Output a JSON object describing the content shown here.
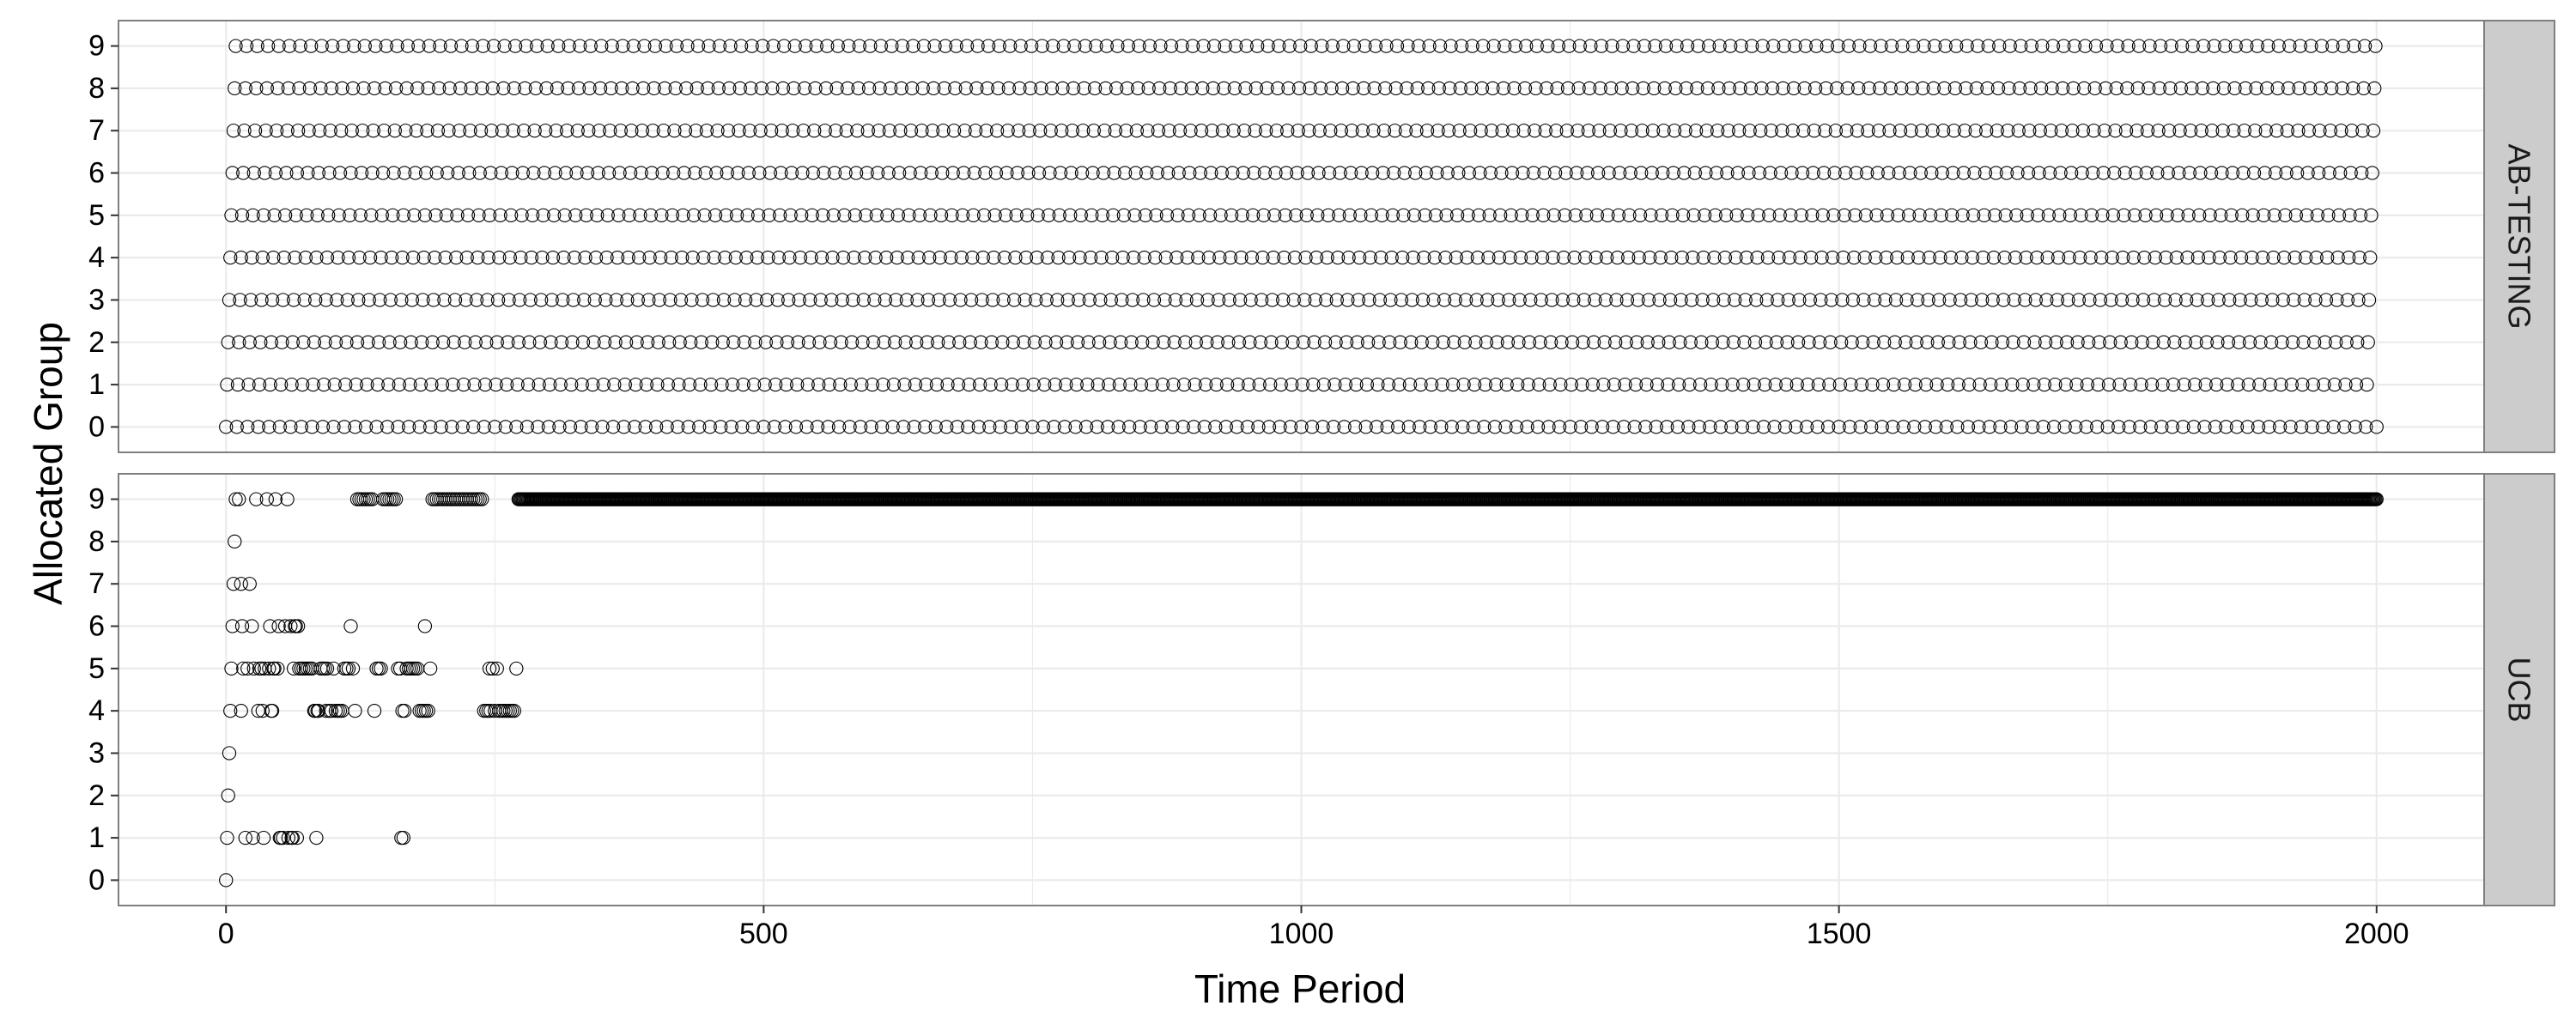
{
  "chart_data": {
    "type": "scatter",
    "xlabel": "Time Period",
    "ylabel": "Allocated Group",
    "xlim": [
      -100,
      2100
    ],
    "ylim": [
      -0.6,
      9.6
    ],
    "x_ticks": [
      0,
      500,
      1000,
      1500,
      2000
    ],
    "y_ticks": [
      0,
      1,
      2,
      3,
      4,
      5,
      6,
      7,
      8,
      9
    ],
    "grid": true,
    "legend": "none",
    "marker": "open-circle",
    "colors": {
      "panel_bg": "#ffffff",
      "grid": "#ebebeb",
      "strip_bg": "#cccccc",
      "marker_stroke": "#000000"
    },
    "facets": [
      {
        "label": "AB-TESTING",
        "description_of_points": "strict rotation: time period t allocated to group t mod 10, t from 0 to 2000",
        "rule": {
          "kind": "round_robin",
          "t_start": 0,
          "t_end": 2000,
          "groups": 10
        }
      },
      {
        "label": "UCB",
        "points": [
          [
            0,
            0
          ],
          [
            1,
            1
          ],
          [
            2,
            2
          ],
          [
            3,
            3
          ],
          [
            4,
            4
          ],
          [
            5,
            5
          ],
          [
            6,
            6
          ],
          [
            7,
            7
          ],
          [
            8,
            8
          ],
          [
            9,
            9
          ],
          [
            12,
            9
          ],
          [
            14,
            7
          ],
          [
            14,
            4
          ],
          [
            15,
            6
          ],
          [
            16,
            5
          ],
          [
            18,
            1
          ],
          [
            20,
            5
          ],
          [
            22,
            7
          ],
          [
            24,
            6
          ],
          [
            25,
            1
          ],
          [
            26,
            5
          ],
          [
            28,
            9
          ],
          [
            30,
            4
          ],
          [
            31,
            5
          ],
          [
            33,
            5
          ],
          [
            34,
            4
          ],
          [
            35,
            1
          ],
          [
            36,
            5
          ],
          [
            38,
            9
          ],
          [
            40,
            5
          ],
          [
            41,
            6
          ],
          [
            42,
            4
          ],
          [
            43,
            4
          ],
          [
            44,
            5
          ],
          [
            45,
            5
          ],
          [
            46,
            9
          ],
          [
            48,
            5
          ],
          [
            49,
            6
          ],
          [
            50,
            1
          ],
          [
            51,
            1
          ],
          [
            53,
            1
          ],
          [
            55,
            6
          ],
          [
            57,
            9
          ],
          [
            58,
            1
          ],
          [
            60,
            6
          ],
          [
            61,
            1
          ],
          [
            62,
            1
          ],
          [
            63,
            5
          ],
          [
            64,
            6
          ],
          [
            65,
            6
          ],
          [
            66,
            1
          ],
          [
            67,
            6
          ],
          [
            68,
            5
          ],
          [
            70,
            5
          ],
          [
            72,
            5
          ],
          [
            74,
            5
          ],
          [
            76,
            5
          ],
          [
            78,
            5
          ],
          [
            80,
            5
          ],
          [
            82,
            4
          ],
          [
            83,
            4
          ],
          [
            84,
            1
          ],
          [
            85,
            4
          ],
          [
            86,
            4
          ],
          [
            88,
            5
          ],
          [
            90,
            5
          ],
          [
            92,
            5
          ],
          [
            93,
            4
          ],
          [
            94,
            5
          ],
          [
            96,
            4
          ],
          [
            98,
            4
          ],
          [
            100,
            5
          ],
          [
            102,
            4
          ],
          [
            104,
            4
          ],
          [
            106,
            4
          ],
          [
            108,
            4
          ],
          [
            110,
            5
          ],
          [
            112,
            5
          ],
          [
            114,
            5
          ],
          [
            116,
            6
          ],
          [
            118,
            5
          ],
          [
            120,
            4
          ],
          [
            122,
            9
          ],
          [
            124,
            9
          ],
          [
            126,
            9
          ],
          [
            128,
            9
          ],
          [
            130,
            9
          ],
          [
            132,
            9
          ],
          [
            134,
            9
          ],
          [
            136,
            9
          ],
          [
            138,
            4
          ],
          [
            140,
            5
          ],
          [
            142,
            5
          ],
          [
            144,
            5
          ],
          [
            146,
            9
          ],
          [
            148,
            9
          ],
          [
            150,
            9
          ],
          [
            152,
            9
          ],
          [
            154,
            9
          ],
          [
            156,
            9
          ],
          [
            158,
            9
          ],
          [
            160,
            5
          ],
          [
            162,
            5
          ],
          [
            163,
            1
          ],
          [
            164,
            4
          ],
          [
            165,
            1
          ],
          [
            166,
            4
          ],
          [
            168,
            5
          ],
          [
            170,
            5
          ],
          [
            172,
            5
          ],
          [
            174,
            5
          ],
          [
            176,
            5
          ],
          [
            178,
            5
          ],
          [
            180,
            4
          ],
          [
            182,
            4
          ],
          [
            184,
            4
          ],
          [
            185,
            6
          ],
          [
            186,
            4
          ],
          [
            188,
            4
          ],
          [
            190,
            5
          ],
          [
            192,
            9
          ],
          [
            194,
            9
          ],
          [
            196,
            9
          ],
          [
            198,
            9
          ],
          [
            200,
            9
          ],
          [
            202,
            9
          ],
          [
            204,
            9
          ],
          [
            206,
            9
          ],
          [
            208,
            9
          ],
          [
            210,
            9
          ],
          [
            212,
            9
          ],
          [
            214,
            9
          ],
          [
            216,
            9
          ],
          [
            218,
            9
          ],
          [
            220,
            9
          ],
          [
            222,
            9
          ],
          [
            224,
            9
          ],
          [
            226,
            9
          ],
          [
            228,
            9
          ],
          [
            230,
            9
          ],
          [
            232,
            9
          ],
          [
            234,
            9
          ],
          [
            236,
            9
          ],
          [
            238,
            9
          ],
          [
            240,
            4
          ],
          [
            242,
            4
          ],
          [
            244,
            4
          ],
          [
            245,
            5
          ],
          [
            246,
            4
          ],
          [
            248,
            5
          ],
          [
            250,
            4
          ],
          [
            252,
            5
          ],
          [
            254,
            4
          ],
          [
            256,
            4
          ],
          [
            258,
            4
          ],
          [
            260,
            4
          ],
          [
            262,
            4
          ],
          [
            264,
            4
          ],
          [
            266,
            4
          ],
          [
            268,
            4
          ],
          [
            270,
            5
          ]
        ],
        "dense_runs": [
          {
            "y": 9,
            "x_start": 272,
            "x_end": 2000,
            "step": 1
          }
        ]
      }
    ]
  }
}
